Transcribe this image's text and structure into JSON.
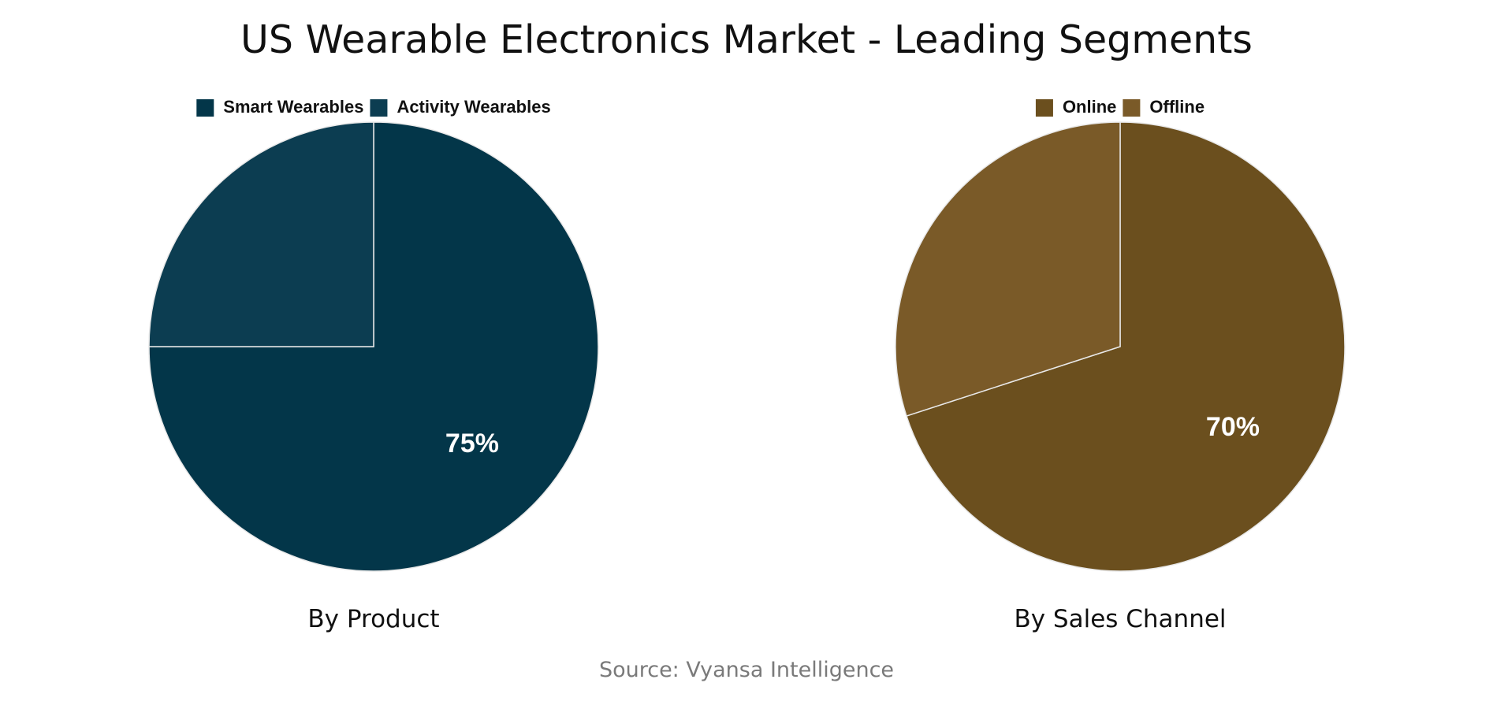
{
  "title": "US Wearable Electronics Market - Leading Segments",
  "source": "Source: Vyansa Intelligence",
  "chart_data": [
    {
      "type": "pie",
      "title": "By Product",
      "series": [
        {
          "name": "Smart Wearables",
          "value": 75,
          "color": "#033649",
          "label": "75%"
        },
        {
          "name": "Activity Wearables",
          "value": 25,
          "color": "#0c3d51",
          "label": ""
        }
      ],
      "legend": "top"
    },
    {
      "type": "pie",
      "title": "By Sales Channel",
      "series": [
        {
          "name": "Online",
          "value": 70,
          "color": "#6b4f1e",
          "label": "70%"
        },
        {
          "name": "Offline",
          "value": 30,
          "color": "#7a5a28",
          "label": ""
        }
      ],
      "legend": "top"
    }
  ]
}
